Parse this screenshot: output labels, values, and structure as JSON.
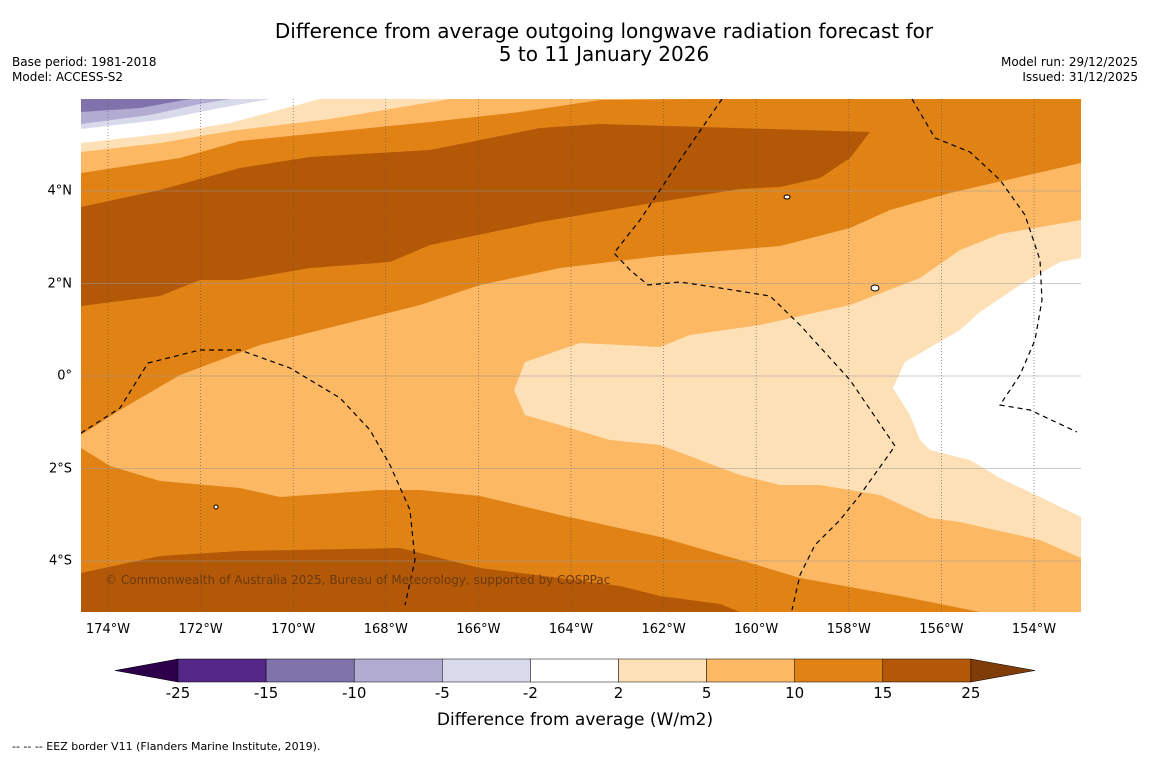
{
  "title": {
    "line1": "Difference from average outgoing longwave radiation forecast for",
    "line2": "5 to 11 January 2026"
  },
  "info_left": {
    "base_period": "Base period: 1981-2018",
    "model": "Model: ACCESS-S2"
  },
  "info_right": {
    "model_run": "Model run: 29/12/2025",
    "issued": "Issued: 31/12/2025"
  },
  "map": {
    "x_labels": [
      "174°W",
      "172°W",
      "170°W",
      "168°W",
      "166°W",
      "164°W",
      "162°W",
      "160°W",
      "158°W",
      "156°W",
      "154°W"
    ],
    "y_labels": [
      "4°N",
      "2°N",
      "0°",
      "2°S",
      "4°S"
    ],
    "copyright": "© Commonwealth of Australia 2025, Bureau of Meteorology, supported by COSPPac"
  },
  "colorbar": {
    "ticks": [
      "-25",
      "-15",
      "-10",
      "-5",
      "-2",
      "2",
      "5",
      "10",
      "15",
      "25"
    ],
    "colors": [
      "#2d004b",
      "#542788",
      "#8073ac",
      "#b2abd2",
      "#d8daeb",
      "#ffffff",
      "#fee0b6",
      "#fdb863",
      "#e08214",
      "#b35806",
      "#7f3b08"
    ],
    "label": "Difference from average (W/m2)"
  },
  "footnote": "--  --  -- EEZ border V11 (Flanders Marine Institute, 2019)."
}
